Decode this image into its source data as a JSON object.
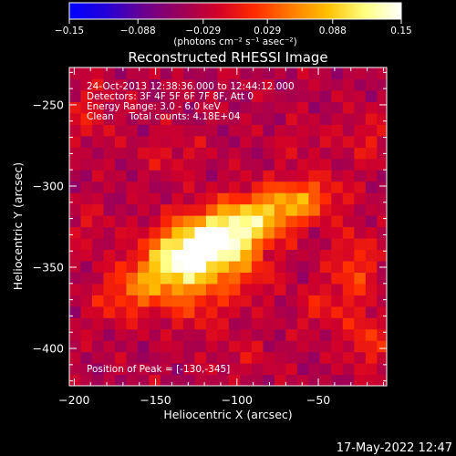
{
  "chart_data": {
    "type": "heatmap",
    "title": "Reconstructed RHESSI Image",
    "xlabel": "Heliocentric X (arcsec)",
    "ylabel": "Heliocentric Y (arcsec)",
    "xlim": [
      -203,
      -8
    ],
    "ylim": [
      -423,
      -227
    ],
    "x_ticks": [
      -200,
      -150,
      -100,
      -50
    ],
    "x_tick_labels": [
      "−200",
      "−150",
      "−100",
      "−50"
    ],
    "y_ticks": [
      -250,
      -300,
      -350,
      -400
    ],
    "y_tick_labels": [
      "−250",
      "−300",
      "−350",
      "−400"
    ],
    "colorbar": {
      "range": [
        -0.15,
        0.15
      ],
      "ticks": [
        -0.15,
        -0.088,
        -0.029,
        0.029,
        0.088,
        0.15
      ],
      "tick_labels": [
        "−0.15",
        "−0.088",
        "−0.029",
        "0.029",
        "0.088",
        "0.15"
      ],
      "label": "(photons cm⁻² s⁻¹ asec⁻²)",
      "colors": [
        "#0000ff",
        "#2400d8",
        "#6a0090",
        "#9a005a",
        "#d0002a",
        "#ff2a00",
        "#ff7a00",
        "#ffc000",
        "#ffff80",
        "#ffffff"
      ]
    },
    "peak": [
      -130,
      -345
    ],
    "peak_value": 0.15,
    "sources": [
      {
        "x": -133,
        "y": -343,
        "amp": 0.15,
        "sx": 17,
        "sy": 14,
        "angle": 30
      },
      {
        "x": -108,
        "y": -333,
        "amp": 0.14,
        "sx": 17,
        "sy": 13,
        "angle": 30
      },
      {
        "x": -83,
        "y": -318,
        "amp": 0.085,
        "sx": 20,
        "sy": 11,
        "angle": 20
      },
      {
        "x": -58,
        "y": -308,
        "amp": 0.06,
        "sx": 16,
        "sy": 9,
        "angle": 10
      },
      {
        "x": -163,
        "y": -363,
        "amp": 0.065,
        "sx": 18,
        "sy": 11,
        "angle": 30
      },
      {
        "x": -123,
        "y": -372,
        "amp": 0.04,
        "sx": 16,
        "sy": 12,
        "angle": 0
      },
      {
        "x": -92,
        "y": -355,
        "amp": 0.035,
        "sx": 12,
        "sy": 10,
        "angle": 0
      },
      {
        "x": -28,
        "y": -350,
        "amp": 0.055,
        "sx": 10,
        "sy": 16,
        "angle": 0
      },
      {
        "x": -20,
        "y": -395,
        "amp": 0.05,
        "sx": 9,
        "sy": 12,
        "angle": 0
      },
      {
        "x": -48,
        "y": -375,
        "amp": 0.035,
        "sx": 10,
        "sy": 10,
        "angle": 0
      },
      {
        "x": -190,
        "y": -255,
        "amp": 0.03,
        "sx": 10,
        "sy": 14,
        "angle": 0
      },
      {
        "x": -140,
        "y": -280,
        "amp": 0.025,
        "sx": 14,
        "sy": 9,
        "angle": 0
      },
      {
        "x": -20,
        "y": -270,
        "amp": 0.03,
        "sx": 10,
        "sy": 12,
        "angle": 0
      },
      {
        "x": -60,
        "y": -272,
        "amp": 0.02,
        "sx": 12,
        "sy": 8,
        "angle": 0
      },
      {
        "x": -190,
        "y": -325,
        "amp": 0.02,
        "sx": 9,
        "sy": 12,
        "angle": 0
      },
      {
        "x": -95,
        "y": -405,
        "amp": 0.02,
        "sx": 14,
        "sy": 8,
        "angle": 0
      }
    ],
    "background": -0.035,
    "annotations": {
      "time": "24-Oct-2013 12:38:36.000 to 12:44:12.000",
      "detectors": "Detectors: 3F 4F 5F 6F 7F 8F, Att 0",
      "energy": "Energy Range: 3.0 - 6.0 keV",
      "clean": "Clean     Total counts: 4.18E+04",
      "peak": "Position of Peak = [-130,-345]"
    }
  },
  "footer": {
    "timestamp": "17-May-2022 12:47"
  }
}
